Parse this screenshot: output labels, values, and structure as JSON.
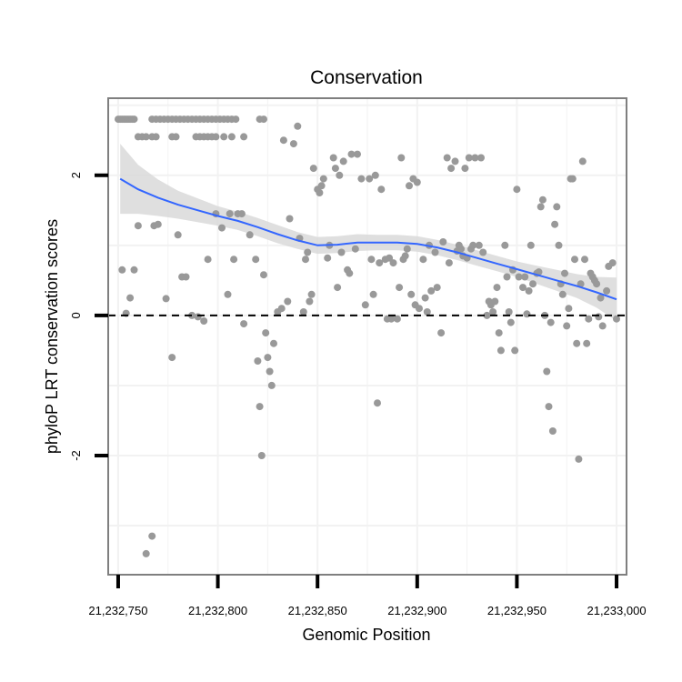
{
  "chart_data": {
    "type": "scatter",
    "title": "Conservation",
    "xlabel": "Genomic Position",
    "ylabel": "phyloP LRT conservation scores",
    "xlim": [
      21232745,
      21233005
    ],
    "ylim": [
      -3.7,
      3.1
    ],
    "x_ticks": [
      21232750,
      21232800,
      21232850,
      21232900,
      21232950,
      21233000
    ],
    "x_tick_labels": [
      "21,232,750",
      "21,232,800",
      "21,232,850",
      "21,232,900",
      "21,232,950",
      "21,233,000"
    ],
    "y_ticks": [
      -2,
      0,
      2
    ],
    "y_tick_labels": [
      "-2",
      "0",
      "2"
    ],
    "reference_line": {
      "y": 0,
      "style": "dashed"
    },
    "grid": true,
    "colors": {
      "points": "#999999",
      "smooth": "#3366ff",
      "band": "#d9d9d9",
      "panel_border": "#7f7f7f"
    },
    "series": [
      {
        "name": "scores",
        "kind": "points",
        "points": [
          [
            21232750,
            2.8
          ],
          [
            21232751,
            2.8
          ],
          [
            21232752,
            2.8
          ],
          [
            21232753,
            2.8
          ],
          [
            21232754,
            2.8
          ],
          [
            21232755,
            2.8
          ],
          [
            21232756,
            2.8
          ],
          [
            21232757,
            2.8
          ],
          [
            21232758,
            2.8
          ],
          [
            21232760,
            2.55
          ],
          [
            21232762,
            2.55
          ],
          [
            21232764,
            2.55
          ],
          [
            21232767,
            2.8
          ],
          [
            21232769,
            2.8
          ],
          [
            21232771,
            2.8
          ],
          [
            21232773,
            2.8
          ],
          [
            21232775,
            2.8
          ],
          [
            21232777,
            2.8
          ],
          [
            21232779,
            2.8
          ],
          [
            21232781,
            2.8
          ],
          [
            21232783,
            2.8
          ],
          [
            21232785,
            2.8
          ],
          [
            21232787,
            2.8
          ],
          [
            21232789,
            2.8
          ],
          [
            21232791,
            2.8
          ],
          [
            21232793,
            2.8
          ],
          [
            21232795,
            2.8
          ],
          [
            21232797,
            2.8
          ],
          [
            21232799,
            2.8
          ],
          [
            21232801,
            2.8
          ],
          [
            21232803,
            2.8
          ],
          [
            21232805,
            2.8
          ],
          [
            21232807,
            2.8
          ],
          [
            21232809,
            2.8
          ],
          [
            21232821,
            2.8
          ],
          [
            21232823,
            2.8
          ],
          [
            21232767,
            2.55
          ],
          [
            21232769,
            2.55
          ],
          [
            21232777,
            2.55
          ],
          [
            21232779,
            2.55
          ],
          [
            21232789,
            2.55
          ],
          [
            21232791,
            2.55
          ],
          [
            21232793,
            2.55
          ],
          [
            21232795,
            2.55
          ],
          [
            21232797,
            2.55
          ],
          [
            21232799,
            2.55
          ],
          [
            21232803,
            2.55
          ],
          [
            21232807,
            2.55
          ],
          [
            21232813,
            2.55
          ],
          [
            21232752,
            0.65
          ],
          [
            21232754,
            0.03
          ],
          [
            21232756,
            0.25
          ],
          [
            21232758,
            0.65
          ],
          [
            21232760,
            1.28
          ],
          [
            21232764,
            -3.4
          ],
          [
            21232767,
            -3.15
          ],
          [
            21232768,
            1.28
          ],
          [
            21232770,
            1.3
          ],
          [
            21232774,
            0.24
          ],
          [
            21232777,
            -0.6
          ],
          [
            21232780,
            1.15
          ],
          [
            21232782,
            0.55
          ],
          [
            21232784,
            0.55
          ],
          [
            21232787,
            0.0
          ],
          [
            21232790,
            -0.02
          ],
          [
            21232793,
            -0.08
          ],
          [
            21232795,
            0.8
          ],
          [
            21232799,
            1.45
          ],
          [
            21232802,
            1.25
          ],
          [
            21232805,
            0.3
          ],
          [
            21232806,
            1.45
          ],
          [
            21232808,
            0.8
          ],
          [
            21232810,
            1.45
          ],
          [
            21232812,
            1.45
          ],
          [
            21232813,
            -0.12
          ],
          [
            21232816,
            1.15
          ],
          [
            21232819,
            0.8
          ],
          [
            21232820,
            -0.65
          ],
          [
            21232821,
            -1.3
          ],
          [
            21232822,
            -2.0
          ],
          [
            21232823,
            0.58
          ],
          [
            21232824,
            -0.25
          ],
          [
            21232825,
            -0.6
          ],
          [
            21232826,
            -0.8
          ],
          [
            21232827,
            -1.0
          ],
          [
            21232828,
            -0.4
          ],
          [
            21232830,
            0.05
          ],
          [
            21232832,
            0.1
          ],
          [
            21232833,
            2.5
          ],
          [
            21232835,
            0.2
          ],
          [
            21232836,
            1.38
          ],
          [
            21232838,
            2.45
          ],
          [
            21232840,
            2.7
          ],
          [
            21232841,
            1.1
          ],
          [
            21232843,
            0.05
          ],
          [
            21232844,
            0.8
          ],
          [
            21232845,
            0.9
          ],
          [
            21232846,
            0.2
          ],
          [
            21232847,
            0.3
          ],
          [
            21232848,
            2.1
          ],
          [
            21232850,
            1.8
          ],
          [
            21232851,
            1.75
          ],
          [
            21232852,
            1.85
          ],
          [
            21232853,
            1.95
          ],
          [
            21232855,
            0.82
          ],
          [
            21232856,
            1.0
          ],
          [
            21232858,
            2.25
          ],
          [
            21232859,
            2.1
          ],
          [
            21232860,
            0.4
          ],
          [
            21232861,
            2.0
          ],
          [
            21232862,
            0.9
          ],
          [
            21232863,
            2.2
          ],
          [
            21232865,
            0.65
          ],
          [
            21232866,
            0.6
          ],
          [
            21232867,
            2.3
          ],
          [
            21232869,
            0.95
          ],
          [
            21232870,
            2.3
          ],
          [
            21232872,
            1.95
          ],
          [
            21232874,
            0.15
          ],
          [
            21232876,
            1.95
          ],
          [
            21232877,
            0.8
          ],
          [
            21232878,
            0.3
          ],
          [
            21232879,
            2.0
          ],
          [
            21232880,
            -1.25
          ],
          [
            21232881,
            0.75
          ],
          [
            21232882,
            1.8
          ],
          [
            21232884,
            0.8
          ],
          [
            21232885,
            -0.05
          ],
          [
            21232886,
            0.82
          ],
          [
            21232887,
            -0.05
          ],
          [
            21232888,
            0.75
          ],
          [
            21232890,
            -0.05
          ],
          [
            21232891,
            0.4
          ],
          [
            21232892,
            2.25
          ],
          [
            21232893,
            0.8
          ],
          [
            21232894,
            0.85
          ],
          [
            21232895,
            0.95
          ],
          [
            21232896,
            1.85
          ],
          [
            21232897,
            0.3
          ],
          [
            21232898,
            1.95
          ],
          [
            21232899,
            0.15
          ],
          [
            21232900,
            1.9
          ],
          [
            21232901,
            0.1
          ],
          [
            21232903,
            0.8
          ],
          [
            21232904,
            0.25
          ],
          [
            21232905,
            0.05
          ],
          [
            21232906,
            1.0
          ],
          [
            21232907,
            0.35
          ],
          [
            21232909,
            0.9
          ],
          [
            21232910,
            0.4
          ],
          [
            21232912,
            -0.25
          ],
          [
            21232913,
            1.05
          ],
          [
            21232915,
            2.25
          ],
          [
            21232916,
            0.75
          ],
          [
            21232917,
            2.1
          ],
          [
            21232919,
            2.2
          ],
          [
            21232920,
            0.92
          ],
          [
            21232921,
            1.0
          ],
          [
            21232922,
            0.95
          ],
          [
            21232923,
            0.85
          ],
          [
            21232924,
            2.1
          ],
          [
            21232925,
            0.82
          ],
          [
            21232926,
            2.25
          ],
          [
            21232927,
            0.95
          ],
          [
            21232928,
            1.0
          ],
          [
            21232929,
            2.25
          ],
          [
            21232931,
            1.0
          ],
          [
            21232932,
            2.25
          ],
          [
            21232933,
            0.9
          ],
          [
            21232935,
            0.0
          ],
          [
            21232936,
            0.2
          ],
          [
            21232937,
            0.15
          ],
          [
            21232938,
            0.05
          ],
          [
            21232939,
            0.2
          ],
          [
            21232940,
            0.4
          ],
          [
            21232941,
            -0.25
          ],
          [
            21232942,
            -0.5
          ],
          [
            21232944,
            1.0
          ],
          [
            21232945,
            0.55
          ],
          [
            21232946,
            0.05
          ],
          [
            21232947,
            -0.1
          ],
          [
            21232948,
            0.65
          ],
          [
            21232949,
            -0.5
          ],
          [
            21232950,
            1.8
          ],
          [
            21232951,
            0.55
          ],
          [
            21232953,
            0.4
          ],
          [
            21232954,
            0.55
          ],
          [
            21232955,
            0.02
          ],
          [
            21232956,
            0.35
          ],
          [
            21232957,
            1.0
          ],
          [
            21232958,
            0.45
          ],
          [
            21232960,
            0.6
          ],
          [
            21232961,
            0.62
          ],
          [
            21232962,
            1.55
          ],
          [
            21232963,
            1.65
          ],
          [
            21232964,
            0.0
          ],
          [
            21232965,
            -0.8
          ],
          [
            21232966,
            -1.3
          ],
          [
            21232967,
            -0.1
          ],
          [
            21232968,
            -1.65
          ],
          [
            21232969,
            1.3
          ],
          [
            21232970,
            1.55
          ],
          [
            21232971,
            1.0
          ],
          [
            21232972,
            0.45
          ],
          [
            21232973,
            0.3
          ],
          [
            21232974,
            0.6
          ],
          [
            21232975,
            -0.15
          ],
          [
            21232976,
            0.1
          ],
          [
            21232977,
            1.95
          ],
          [
            21232978,
            1.95
          ],
          [
            21232979,
            0.8
          ],
          [
            21232980,
            -0.4
          ],
          [
            21232981,
            -2.05
          ],
          [
            21232982,
            0.45
          ],
          [
            21232983,
            2.2
          ],
          [
            21232984,
            0.8
          ],
          [
            21232985,
            -0.4
          ],
          [
            21232986,
            -0.05
          ],
          [
            21232987,
            0.6
          ],
          [
            21232988,
            0.55
          ],
          [
            21232989,
            0.5
          ],
          [
            21232990,
            0.45
          ],
          [
            21232991,
            -0.02
          ],
          [
            21232992,
            0.25
          ],
          [
            21232993,
            -0.15
          ],
          [
            21232995,
            0.35
          ],
          [
            21232996,
            0.7
          ],
          [
            21232998,
            0.75
          ],
          [
            21233000,
            -0.05
          ]
        ]
      },
      {
        "name": "loess fit",
        "kind": "line",
        "x": [
          21232751,
          21232760,
          21232770,
          21232780,
          21232790,
          21232800,
          21232810,
          21232820,
          21232830,
          21232840,
          21232850,
          21232860,
          21232870,
          21232880,
          21232890,
          21232900,
          21232910,
          21232920,
          21232930,
          21232940,
          21232950,
          21232960,
          21232970,
          21232980,
          21232990,
          21233000
        ],
        "y": [
          1.95,
          1.8,
          1.68,
          1.58,
          1.5,
          1.42,
          1.35,
          1.26,
          1.16,
          1.07,
          1.0,
          1.01,
          1.04,
          1.04,
          1.04,
          1.02,
          0.97,
          0.9,
          0.82,
          0.74,
          0.66,
          0.58,
          0.5,
          0.42,
          0.33,
          0.23
        ],
        "lower": [
          1.45,
          1.45,
          1.42,
          1.38,
          1.33,
          1.28,
          1.22,
          1.13,
          1.03,
          0.95,
          0.88,
          0.89,
          0.92,
          0.93,
          0.93,
          0.91,
          0.86,
          0.79,
          0.71,
          0.63,
          0.55,
          0.45,
          0.35,
          0.25,
          0.11,
          -0.08
        ],
        "upper": [
          2.45,
          2.15,
          1.94,
          1.78,
          1.67,
          1.56,
          1.48,
          1.39,
          1.29,
          1.19,
          1.12,
          1.13,
          1.16,
          1.15,
          1.15,
          1.13,
          1.08,
          1.01,
          0.93,
          0.85,
          0.77,
          0.71,
          0.65,
          0.59,
          0.55,
          0.54
        ]
      }
    ]
  }
}
